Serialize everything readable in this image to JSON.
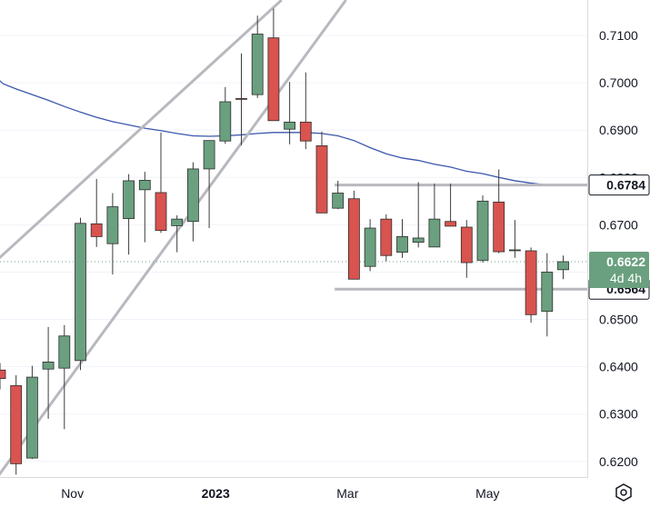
{
  "chart_data": {
    "type": "candlestick",
    "ylim": [
      0.6165,
      0.7175
    ],
    "y_ticks": [
      0.62,
      0.63,
      0.64,
      0.65,
      0.66,
      0.67,
      0.68,
      0.69,
      0.7,
      0.71
    ],
    "y_tick_labels": [
      "0.6200",
      "0.6300",
      "0.6400",
      "0.6500",
      "0.6600",
      "0.6700",
      "0.6800",
      "0.6900",
      "0.7000",
      "0.7100"
    ],
    "x_labels": [
      {
        "label": "Nov",
        "bar": 4.5,
        "bold": false
      },
      {
        "label": "2023",
        "bar": 13.4,
        "bold": true
      },
      {
        "label": "Mar",
        "bar": 21.6,
        "bold": false
      },
      {
        "label": "May",
        "bar": 30.3,
        "bold": false
      }
    ],
    "colors": {
      "up": "#6aa07f",
      "down": "#d9534f",
      "ma": "#3a57ad",
      "channel": "#b8b8bf",
      "level": "#b8b8bf"
    },
    "candles": [
      {
        "o": 0.6393,
        "h": 0.6408,
        "l": 0.6352,
        "c": 0.6375
      },
      {
        "o": 0.636,
        "h": 0.6382,
        "l": 0.6172,
        "c": 0.6195
      },
      {
        "o": 0.6207,
        "h": 0.6402,
        "l": 0.6205,
        "c": 0.6378
      },
      {
        "o": 0.6395,
        "h": 0.6484,
        "l": 0.629,
        "c": 0.641
      },
      {
        "o": 0.6397,
        "h": 0.6488,
        "l": 0.6268,
        "c": 0.6465
      },
      {
        "o": 0.6413,
        "h": 0.6715,
        "l": 0.6393,
        "c": 0.6703
      },
      {
        "o": 0.6702,
        "h": 0.6797,
        "l": 0.6653,
        "c": 0.6675
      },
      {
        "o": 0.666,
        "h": 0.6767,
        "l": 0.6595,
        "c": 0.6738
      },
      {
        "o": 0.6713,
        "h": 0.6807,
        "l": 0.6637,
        "c": 0.6793
      },
      {
        "o": 0.6774,
        "h": 0.6812,
        "l": 0.6663,
        "c": 0.6794
      },
      {
        "o": 0.6768,
        "h": 0.6895,
        "l": 0.6683,
        "c": 0.6688
      },
      {
        "o": 0.6698,
        "h": 0.672,
        "l": 0.6642,
        "c": 0.6712
      },
      {
        "o": 0.6707,
        "h": 0.6832,
        "l": 0.6665,
        "c": 0.6818
      },
      {
        "o": 0.6818,
        "h": 0.6877,
        "l": 0.6693,
        "c": 0.6878
      },
      {
        "o": 0.6877,
        "h": 0.6991,
        "l": 0.6871,
        "c": 0.696
      },
      {
        "o": 0.6967,
        "h": 0.7062,
        "l": 0.6868,
        "c": 0.6965
      },
      {
        "o": 0.6975,
        "h": 0.7142,
        "l": 0.6968,
        "c": 0.7103
      },
      {
        "o": 0.7095,
        "h": 0.7157,
        "l": 0.692,
        "c": 0.692
      },
      {
        "o": 0.6902,
        "h": 0.7002,
        "l": 0.687,
        "c": 0.6917
      },
      {
        "o": 0.6917,
        "h": 0.7022,
        "l": 0.686,
        "c": 0.6877
      },
      {
        "o": 0.6867,
        "h": 0.6897,
        "l": 0.6725,
        "c": 0.6725
      },
      {
        "o": 0.6735,
        "h": 0.6793,
        "l": 0.6733,
        "c": 0.6767
      },
      {
        "o": 0.6755,
        "h": 0.6772,
        "l": 0.6585,
        "c": 0.6585
      },
      {
        "o": 0.6612,
        "h": 0.6712,
        "l": 0.6602,
        "c": 0.6693
      },
      {
        "o": 0.6712,
        "h": 0.6722,
        "l": 0.6623,
        "c": 0.6635
      },
      {
        "o": 0.6642,
        "h": 0.6712,
        "l": 0.663,
        "c": 0.6675
      },
      {
        "o": 0.6663,
        "h": 0.679,
        "l": 0.6652,
        "c": 0.6672
      },
      {
        "o": 0.6653,
        "h": 0.6787,
        "l": 0.6655,
        "c": 0.6712
      },
      {
        "o": 0.6707,
        "h": 0.6787,
        "l": 0.6698,
        "c": 0.6697
      },
      {
        "o": 0.6695,
        "h": 0.671,
        "l": 0.6588,
        "c": 0.662
      },
      {
        "o": 0.6625,
        "h": 0.6762,
        "l": 0.662,
        "c": 0.675
      },
      {
        "o": 0.6748,
        "h": 0.6817,
        "l": 0.664,
        "c": 0.6643
      },
      {
        "o": 0.6647,
        "h": 0.671,
        "l": 0.663,
        "c": 0.6647
      },
      {
        "o": 0.6645,
        "h": 0.6652,
        "l": 0.6493,
        "c": 0.651
      },
      {
        "o": 0.6517,
        "h": 0.664,
        "l": 0.6464,
        "c": 0.66
      },
      {
        "o": 0.6605,
        "h": 0.6635,
        "l": 0.6585,
        "c": 0.6622
      }
    ],
    "moving_average": [
      {
        "bar": -0.5,
        "v": 0.7019
      },
      {
        "bar": 0.2,
        "v": 0.6998
      },
      {
        "bar": 1.0,
        "v": 0.6987
      },
      {
        "bar": 2.0,
        "v": 0.6975
      },
      {
        "bar": 3.0,
        "v": 0.6963
      },
      {
        "bar": 4.0,
        "v": 0.695
      },
      {
        "bar": 5.0,
        "v": 0.6938
      },
      {
        "bar": 6.0,
        "v": 0.6927
      },
      {
        "bar": 7.0,
        "v": 0.6918
      },
      {
        "bar": 8.0,
        "v": 0.6911
      },
      {
        "bar": 9.0,
        "v": 0.6904
      },
      {
        "bar": 10.0,
        "v": 0.6899
      },
      {
        "bar": 11.0,
        "v": 0.6893
      },
      {
        "bar": 12.0,
        "v": 0.6888
      },
      {
        "bar": 13.0,
        "v": 0.6887
      },
      {
        "bar": 14.0,
        "v": 0.6888
      },
      {
        "bar": 15.0,
        "v": 0.689
      },
      {
        "bar": 16.0,
        "v": 0.6893
      },
      {
        "bar": 17.0,
        "v": 0.6895
      },
      {
        "bar": 18.0,
        "v": 0.6895
      },
      {
        "bar": 19.0,
        "v": 0.6895
      },
      {
        "bar": 20.0,
        "v": 0.6893
      },
      {
        "bar": 21.0,
        "v": 0.6888
      },
      {
        "bar": 22.0,
        "v": 0.6878
      },
      {
        "bar": 23.0,
        "v": 0.6863
      },
      {
        "bar": 24.0,
        "v": 0.685
      },
      {
        "bar": 25.0,
        "v": 0.6841
      },
      {
        "bar": 26.0,
        "v": 0.6836
      },
      {
        "bar": 27.0,
        "v": 0.6828
      },
      {
        "bar": 28.0,
        "v": 0.6822
      },
      {
        "bar": 29.0,
        "v": 0.6813
      },
      {
        "bar": 30.0,
        "v": 0.6808
      },
      {
        "bar": 31.0,
        "v": 0.68
      },
      {
        "bar": 32.0,
        "v": 0.6793
      },
      {
        "bar": 33.0,
        "v": 0.6788
      },
      {
        "bar": 34.0,
        "v": 0.6784
      }
    ],
    "channel_lines": [
      {
        "from": {
          "bar": -1.0,
          "v": 0.66
        },
        "to": {
          "bar": 17.5,
          "v": 0.7175
        }
      },
      {
        "from": {
          "bar": -0.2,
          "v": 0.6165
        },
        "to": {
          "bar": 21.5,
          "v": 0.7175
        }
      }
    ],
    "levels": [
      {
        "value": 0.6784,
        "from_bar": 20.8,
        "label": "0.6784"
      },
      {
        "value": 0.6564,
        "from_bar": 20.8,
        "label": "0.6564"
      }
    ],
    "last_price": {
      "value": 0.6622,
      "label": "0.6622",
      "countdown": "4d 4h",
      "color": "#6aa07f"
    }
  }
}
